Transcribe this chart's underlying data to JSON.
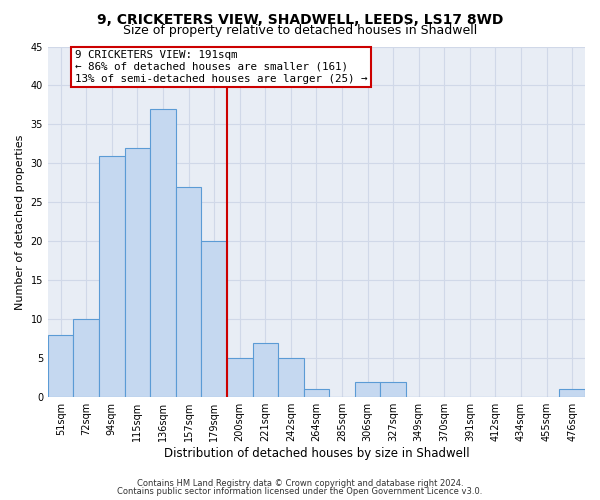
{
  "title": "9, CRICKETERS VIEW, SHADWELL, LEEDS, LS17 8WD",
  "subtitle": "Size of property relative to detached houses in Shadwell",
  "xlabel": "Distribution of detached houses by size in Shadwell",
  "ylabel": "Number of detached properties",
  "categories": [
    "51sqm",
    "72sqm",
    "94sqm",
    "115sqm",
    "136sqm",
    "157sqm",
    "179sqm",
    "200sqm",
    "221sqm",
    "242sqm",
    "264sqm",
    "285sqm",
    "306sqm",
    "327sqm",
    "349sqm",
    "370sqm",
    "391sqm",
    "412sqm",
    "434sqm",
    "455sqm",
    "476sqm"
  ],
  "values": [
    8,
    10,
    31,
    32,
    37,
    27,
    20,
    5,
    7,
    5,
    1,
    0,
    2,
    2,
    0,
    0,
    0,
    0,
    0,
    0,
    1
  ],
  "bar_color": "#c5d8f0",
  "bar_edge_color": "#5b9bd5",
  "vline_index": 6.5,
  "vline_color": "#cc0000",
  "annotation_text": "9 CRICKETERS VIEW: 191sqm\n← 86% of detached houses are smaller (161)\n13% of semi-detached houses are larger (25) →",
  "annotation_box_color": "#ffffff",
  "annotation_box_edge_color": "#cc0000",
  "ylim": [
    0,
    45
  ],
  "yticks": [
    0,
    5,
    10,
    15,
    20,
    25,
    30,
    35,
    40,
    45
  ],
  "grid_color": "#d0d8e8",
  "background_color": "#e8edf5",
  "footer_line1": "Contains HM Land Registry data © Crown copyright and database right 2024.",
  "footer_line2": "Contains public sector information licensed under the Open Government Licence v3.0.",
  "title_fontsize": 10,
  "subtitle_fontsize": 9,
  "tick_fontsize": 7,
  "ylabel_fontsize": 8,
  "xlabel_fontsize": 8.5
}
